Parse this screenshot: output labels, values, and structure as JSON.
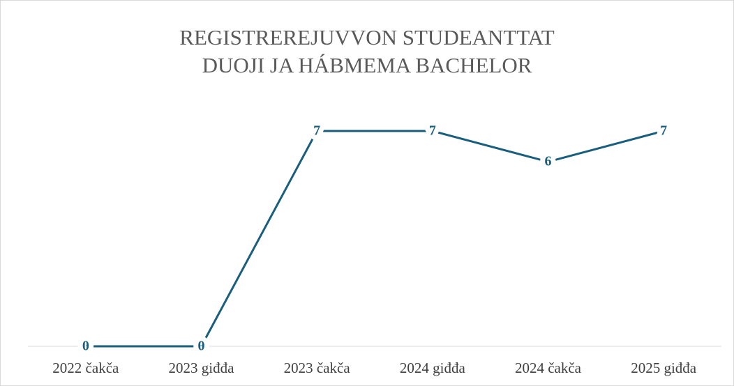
{
  "chart_data": {
    "type": "line",
    "title": "REGISTREREJUVVON STUDEANTTAT DUOJI JA HÁBMEMA BACHELOR",
    "categories": [
      "2022 čakča",
      "2023 giđđa",
      "2023 čakča",
      "2024 giđđa",
      "2024 čakča",
      "2025 giđđa"
    ],
    "values": [
      0,
      0,
      7,
      7,
      6,
      7
    ],
    "color": "#1a5e7e",
    "ylim": [
      0,
      7
    ]
  }
}
